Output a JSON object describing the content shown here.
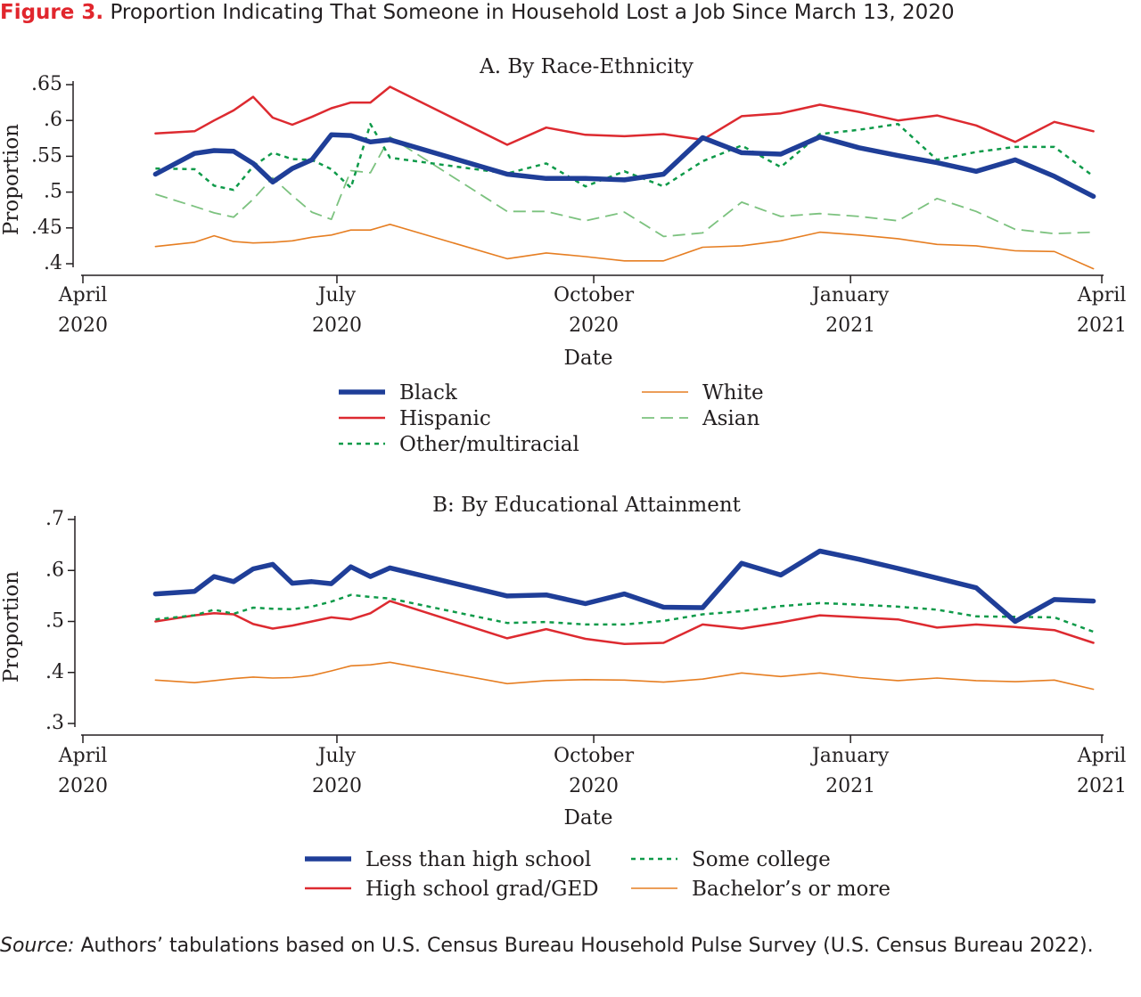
{
  "figure": {
    "label": "Figure 3.",
    "title": "Proportion Indicating That Someone in Household Lost a Job Since March 13, 2020"
  },
  "source": {
    "label": "Source:",
    "text": "Authors’ tabulations based on U.S. Census Bureau Household Pulse Survey (U.S. Census Bureau 2022)."
  },
  "chart_data": [
    {
      "type": "line",
      "title": "A. By Race-Ethnicity",
      "xlabel": "Date",
      "ylabel": "Proportion",
      "ylim": [
        0.4,
        0.65
      ],
      "yticks": [
        ".4",
        ".45",
        ".5",
        ".55",
        ".6",
        ".65"
      ],
      "xticks": [
        {
          "date": "2020-04-01",
          "line1": "April",
          "line2": "2020"
        },
        {
          "date": "2020-07-01",
          "line1": "July",
          "line2": "2020"
        },
        {
          "date": "2020-10-01",
          "line1": "October",
          "line2": "2020"
        },
        {
          "date": "2021-01-01",
          "line1": "January",
          "line2": "2021"
        },
        {
          "date": "2021-04-01",
          "line1": "April",
          "line2": "2021"
        }
      ],
      "grid": false,
      "legend": "bottom",
      "x": [
        "2020-04-27",
        "2020-05-11",
        "2020-05-18",
        "2020-05-25",
        "2020-06-01",
        "2020-06-08",
        "2020-06-15",
        "2020-06-22",
        "2020-06-29",
        "2020-07-06",
        "2020-07-13",
        "2020-07-20",
        "2020-08-31",
        "2020-09-14",
        "2020-09-28",
        "2020-10-12",
        "2020-10-26",
        "2020-11-09",
        "2020-11-23",
        "2020-12-07",
        "2020-12-21",
        "2021-01-04",
        "2021-01-18",
        "2021-02-01",
        "2021-02-15",
        "2021-03-01",
        "2021-03-15",
        "2021-03-29"
      ],
      "series": [
        {
          "name": "Black",
          "color": "#1f3e98",
          "width": 5.5,
          "dash": "",
          "values": [
            0.525,
            0.554,
            0.558,
            0.557,
            0.54,
            0.514,
            0.533,
            0.545,
            0.58,
            0.579,
            0.57,
            0.573,
            0.525,
            0.519,
            0.519,
            0.517,
            0.525,
            0.576,
            0.555,
            0.553,
            0.577,
            0.562,
            0.551,
            0.541,
            0.529,
            0.545,
            0.522,
            0.494
          ]
        },
        {
          "name": "Hispanic",
          "color": "#dd2a30",
          "width": 2.5,
          "dash": "",
          "values": [
            0.582,
            0.585,
            0.6,
            0.614,
            0.633,
            0.604,
            0.594,
            0.605,
            0.617,
            0.625,
            0.625,
            0.647,
            0.566,
            0.59,
            0.58,
            0.578,
            0.581,
            0.573,
            0.606,
            0.61,
            0.622,
            0.612,
            0.6,
            0.607,
            0.593,
            0.57,
            0.598,
            0.585
          ]
        },
        {
          "name": "Other/multiracial",
          "color": "#0e9a49",
          "width": 2.5,
          "dash": "5,5",
          "values": [
            0.533,
            0.532,
            0.509,
            0.503,
            0.536,
            0.555,
            0.546,
            0.545,
            0.532,
            0.506,
            0.595,
            0.548,
            0.526,
            0.54,
            0.508,
            0.529,
            0.508,
            0.543,
            0.565,
            0.535,
            0.581,
            0.587,
            0.595,
            0.545,
            0.556,
            0.563,
            0.563,
            0.522
          ]
        },
        {
          "name": "White",
          "color": "#e67e22",
          "width": 1.6,
          "dash": "",
          "values": [
            0.424,
            0.43,
            0.439,
            0.431,
            0.429,
            0.43,
            0.432,
            0.437,
            0.44,
            0.447,
            0.447,
            0.455,
            0.407,
            0.415,
            0.41,
            0.404,
            0.404,
            0.423,
            0.425,
            0.432,
            0.444,
            0.44,
            0.435,
            0.427,
            0.425,
            0.418,
            0.417,
            0.393
          ]
        },
        {
          "name": "Asian",
          "color": "#7cc27f",
          "width": 1.8,
          "dash": "14,7",
          "values": [
            0.497,
            0.48,
            0.471,
            0.465,
            0.49,
            0.52,
            0.495,
            0.472,
            0.462,
            0.53,
            0.527,
            0.577,
            0.473,
            0.473,
            0.46,
            0.472,
            0.438,
            0.443,
            0.486,
            0.466,
            0.47,
            0.466,
            0.46,
            0.491,
            0.473,
            0.448,
            0.442,
            0.444
          ]
        }
      ]
    },
    {
      "type": "line",
      "title": "B: By Educational Attainment",
      "xlabel": "Date",
      "ylabel": "Proportion",
      "ylim": [
        0.3,
        0.7
      ],
      "yticks": [
        ".3",
        ".4",
        ".5",
        ".6",
        ".7"
      ],
      "xticks": [
        {
          "date": "2020-04-01",
          "line1": "April",
          "line2": "2020"
        },
        {
          "date": "2020-07-01",
          "line1": "July",
          "line2": "2020"
        },
        {
          "date": "2020-10-01",
          "line1": "October",
          "line2": "2020"
        },
        {
          "date": "2021-01-01",
          "line1": "January",
          "line2": "2021"
        },
        {
          "date": "2021-04-01",
          "line1": "April",
          "line2": "2021"
        }
      ],
      "grid": false,
      "legend": "bottom",
      "x": [
        "2020-04-27",
        "2020-05-11",
        "2020-05-18",
        "2020-05-25",
        "2020-06-01",
        "2020-06-08",
        "2020-06-15",
        "2020-06-22",
        "2020-06-29",
        "2020-07-06",
        "2020-07-13",
        "2020-07-20",
        "2020-08-31",
        "2020-09-14",
        "2020-09-28",
        "2020-10-12",
        "2020-10-26",
        "2020-11-09",
        "2020-11-23",
        "2020-12-07",
        "2020-12-21",
        "2021-01-04",
        "2021-01-18",
        "2021-02-01",
        "2021-02-15",
        "2021-03-01",
        "2021-03-15",
        "2021-03-29"
      ],
      "series": [
        {
          "name": "Less than high school",
          "color": "#1f3e98",
          "width": 5.5,
          "dash": "",
          "values": [
            0.554,
            0.559,
            0.588,
            0.578,
            0.603,
            0.612,
            0.575,
            0.578,
            0.574,
            0.607,
            0.588,
            0.605,
            0.55,
            0.552,
            0.535,
            0.554,
            0.528,
            0.527,
            0.614,
            0.591,
            0.638,
            0.622,
            0.604,
            0.585,
            0.566,
            0.5,
            0.543,
            0.54
          ]
        },
        {
          "name": "High school grad/GED",
          "color": "#dd2a30",
          "width": 2.5,
          "dash": "",
          "values": [
            0.5,
            0.512,
            0.516,
            0.514,
            0.495,
            0.486,
            0.492,
            0.5,
            0.508,
            0.504,
            0.516,
            0.54,
            0.467,
            0.485,
            0.466,
            0.456,
            0.458,
            0.494,
            0.486,
            0.498,
            0.512,
            0.508,
            0.504,
            0.488,
            0.494,
            0.489,
            0.483,
            0.458
          ]
        },
        {
          "name": "Some college",
          "color": "#0e9a49",
          "width": 2.5,
          "dash": "5,5",
          "values": [
            0.504,
            0.512,
            0.523,
            0.515,
            0.527,
            0.525,
            0.524,
            0.529,
            0.539,
            0.552,
            0.548,
            0.545,
            0.497,
            0.499,
            0.494,
            0.494,
            0.501,
            0.514,
            0.52,
            0.53,
            0.536,
            0.533,
            0.529,
            0.523,
            0.51,
            0.509,
            0.508,
            0.48
          ]
        },
        {
          "name": "Bachelor’s or more",
          "color": "#e67e22",
          "width": 1.6,
          "dash": "",
          "values": [
            0.385,
            0.38,
            0.384,
            0.388,
            0.391,
            0.389,
            0.39,
            0.394,
            0.403,
            0.413,
            0.415,
            0.42,
            0.378,
            0.384,
            0.386,
            0.385,
            0.381,
            0.387,
            0.399,
            0.392,
            0.399,
            0.39,
            0.384,
            0.389,
            0.384,
            0.382,
            0.385,
            0.367
          ]
        }
      ]
    }
  ]
}
